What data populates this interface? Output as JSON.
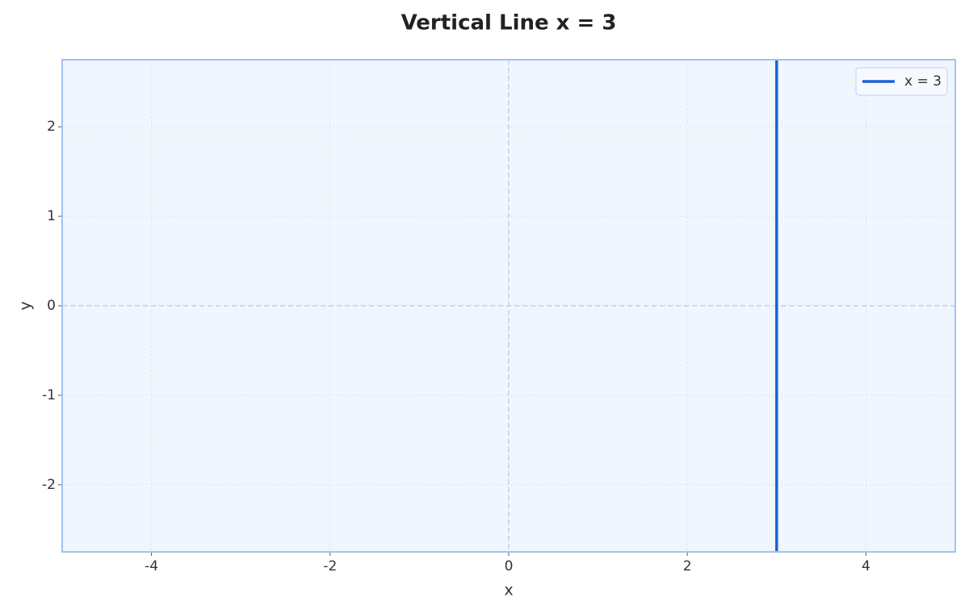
{
  "chart_data": {
    "type": "line",
    "title": "Vertical Line x = 3",
    "xlabel": "x",
    "ylabel": "y",
    "series": [
      {
        "name": "x = 3",
        "color": "#1a62d6",
        "x": [
          3,
          3
        ],
        "values": [
          -2.75,
          2.75
        ]
      }
    ],
    "xlim": [
      -5,
      5
    ],
    "ylim": [
      -2.75,
      2.75
    ],
    "xticks": [
      -4,
      -2,
      0,
      2,
      4
    ],
    "yticks": [
      -2,
      -1,
      0,
      1,
      2
    ],
    "grid": true,
    "zero_lines": true,
    "legend": "upper-right"
  }
}
